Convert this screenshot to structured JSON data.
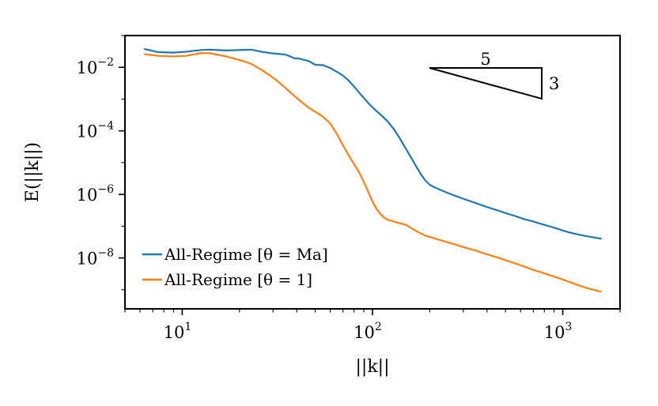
{
  "chart_data": {
    "type": "line",
    "xscale": "log",
    "yscale": "log",
    "xlim": [
      5,
      2000
    ],
    "ylim": [
      2.5e-10,
      0.1
    ],
    "xlabel": "||k||",
    "ylabel": "E(||k||)",
    "x_ticks": [
      {
        "base": "10",
        "exp": "1"
      },
      {
        "base": "10",
        "exp": "2"
      },
      {
        "base": "10",
        "exp": "3"
      }
    ],
    "y_ticks": [
      {
        "base": "10",
        "exp": "−2"
      },
      {
        "base": "10",
        "exp": "−4"
      },
      {
        "base": "10",
        "exp": "−6"
      },
      {
        "base": "10",
        "exp": "−8"
      }
    ],
    "series": [
      {
        "name": "All-Regime [θ = Ma]",
        "color": "#1f77b4",
        "x": [
          6.3,
          7.5,
          9,
          10.5,
          12.5,
          14,
          17,
          20,
          23,
          26,
          29,
          31,
          33,
          35,
          37,
          39,
          41,
          44,
          46,
          50,
          55,
          60,
          65,
          70,
          75,
          80,
          85,
          90,
          95,
          100,
          110,
          120,
          130,
          140,
          150,
          160,
          170,
          180,
          190,
          200,
          215,
          230,
          245,
          260,
          280,
          300,
          330,
          360,
          400,
          450,
          500,
          560,
          620,
          700,
          800,
          900,
          1000,
          1100,
          1200,
          1300,
          1400,
          1500,
          1600
        ],
        "y": [
          0.038,
          0.03,
          0.029,
          0.031,
          0.035,
          0.036,
          0.034,
          0.035,
          0.036,
          0.031,
          0.028,
          0.027,
          0.026,
          0.025,
          0.022,
          0.019,
          0.019,
          0.017,
          0.016,
          0.012,
          0.0117,
          0.0095,
          0.0072,
          0.0055,
          0.0038,
          0.0025,
          0.0016,
          0.0011,
          0.00075,
          0.00055,
          0.00033,
          0.0002,
          0.00011,
          5.5e-05,
          2.7e-05,
          1.4e-05,
          7.5e-06,
          4.2e-06,
          2.7e-06,
          2e-06,
          1.6e-06,
          1.35e-06,
          1.15e-06,
          1e-06,
          8.5e-07,
          7.3e-07,
          6e-07,
          5e-07,
          4e-07,
          3.2e-07,
          2.6e-07,
          2.1e-07,
          1.7e-07,
          1.4e-07,
          1.1e-07,
          9e-08,
          7.3e-08,
          6.2e-08,
          5.5e-08,
          5e-08,
          4.6e-08,
          4.3e-08,
          4e-08
        ]
      },
      {
        "name": "All-Regime [θ = 1]",
        "color": "#ff7f0e",
        "x": [
          6.3,
          7.5,
          9,
          10.5,
          12.5,
          14,
          17,
          20,
          23,
          26,
          29,
          32,
          35,
          38,
          42,
          46,
          50,
          55,
          60,
          65,
          70,
          75,
          80,
          85,
          90,
          95,
          100,
          105,
          110,
          115,
          120,
          125,
          135,
          150,
          170,
          190,
          210,
          240,
          270,
          300,
          350,
          400,
          450,
          500,
          560,
          620,
          700,
          800,
          900,
          1000,
          1100,
          1200,
          1300,
          1400,
          1500,
          1600
        ],
        "y": [
          0.026,
          0.023,
          0.022,
          0.023,
          0.028,
          0.028,
          0.022,
          0.017,
          0.013,
          0.0085,
          0.0055,
          0.0035,
          0.0022,
          0.0014,
          0.00085,
          0.00055,
          0.0004,
          0.00028,
          0.00017,
          8e-05,
          3.5e-05,
          1.7e-05,
          9e-06,
          5e-06,
          2.5e-06,
          1.2e-06,
          6e-07,
          3.5e-07,
          2.4e-07,
          1.9e-07,
          1.6e-07,
          1.5e-07,
          1.3e-07,
          1.1e-07,
          7e-08,
          5e-08,
          4.2e-08,
          3.3e-08,
          2.7e-08,
          2.2e-08,
          1.7e-08,
          1.3e-08,
          1.05e-08,
          8.5e-09,
          6.8e-09,
          5.5e-09,
          4.2e-09,
          3.3e-09,
          2.6e-09,
          2.1e-09,
          1.7e-09,
          1.4e-09,
          1.2e-09,
          1.05e-09,
          9.5e-10,
          8.5e-10
        ]
      }
    ],
    "annotations": {
      "triangle_run_label": "5",
      "triangle_rise_label": "3"
    },
    "legend": {
      "placement": "lower-left",
      "entries": [
        "All-Regime [θ = Ma]",
        "All-Regime [θ = 1]"
      ]
    },
    "grid": false
  }
}
